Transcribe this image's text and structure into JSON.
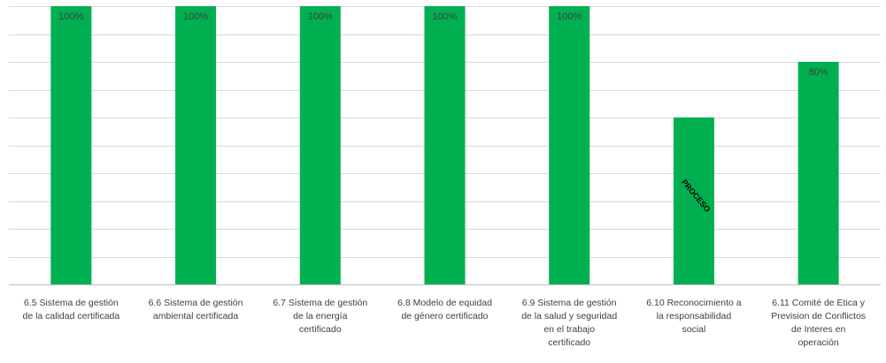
{
  "chart_data": {
    "type": "bar",
    "categories": [
      "6.5 Sistema de gestión de la calidad certificada",
      "6.6 Sistema de gestión ambiental certificada",
      "6.7 Sistema de gestión de la energía certificado",
      "6.8 Modelo de equidad de género certificado",
      "6.9 Sistema de gestión de la salud y seguridad en el trabajo certificado",
      "6.10 Reconocimiento a la responsabilidad social",
      "6.11 Comité de Etica y Prevision de Conflictos de Interes en operación"
    ],
    "category_lines": [
      [
        "6.5 Sistema de gestión",
        "de la calidad certificada"
      ],
      [
        "6.6 Sistema de gestión",
        "ambiental certificada"
      ],
      [
        "6.7 Sistema de gestión",
        "de la energía",
        "certificado"
      ],
      [
        "6.8 Modelo de equidad",
        "de género certificado"
      ],
      [
        "6.9 Sistema de gestión",
        "de la salud y seguridad",
        "en el trabajo",
        "certificado"
      ],
      [
        "6.10 Reconocimiento a",
        "la responsabilidad",
        "social"
      ],
      [
        "6.11 Comité de Etica y",
        "Prevision de Conflictos",
        "de Interes en",
        "operación"
      ]
    ],
    "values": [
      100,
      100,
      100,
      100,
      100,
      60,
      80
    ],
    "data_labels": [
      "100%",
      "100%",
      "100%",
      "100%",
      "100%",
      "PROCESO",
      "80%"
    ],
    "ylim": [
      0,
      100
    ],
    "grid": true,
    "bar_color": "#00b050",
    "gridline_color": "#d9d9d9"
  }
}
